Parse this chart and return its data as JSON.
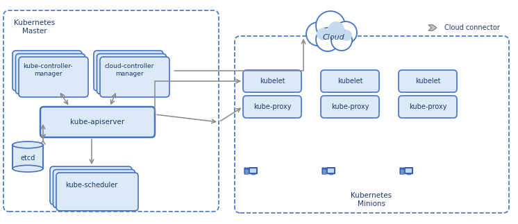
{
  "bg_color": "#ffffff",
  "box_fill": "#dce9f7",
  "box_stroke": "#4472c4",
  "dashed_col": "#4472c4",
  "text_col": "#1a3a6b",
  "arrow_col": "#888888",
  "gray_fill": "#cccccc",
  "gray_stroke": "#888888",
  "cloud_inner": "#c5d9f1",
  "computer_blue": "#4472c4",
  "computer_screen": "#bdd7ee",
  "title_master": "Kubernetes\nMaster",
  "title_minions": "Kubernetes\nMinions",
  "cloud_label": "Cloud",
  "cloud_connector_label": "Cloud connector",
  "kube_controller": "kube-controller-\nmanager",
  "cloud_controller": "cloud-controller\nmanager",
  "kube_apiserver": "kube-apiserver",
  "etcd": "etcd",
  "kube_scheduler": "kube-scheduler",
  "kubelet": "kubelet",
  "kube_proxy": "kube-proxy"
}
